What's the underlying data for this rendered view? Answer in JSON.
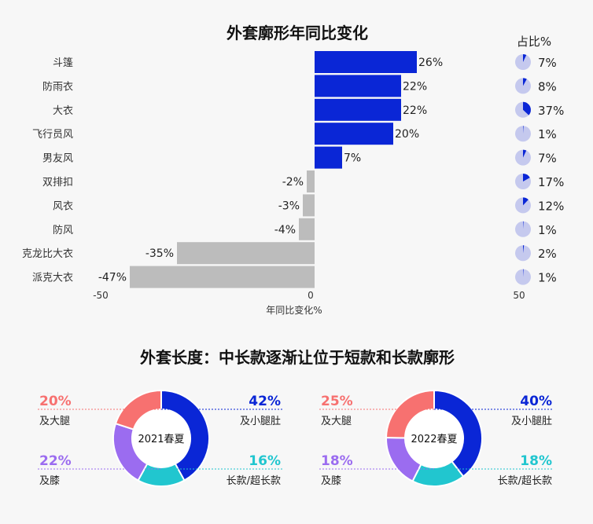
{
  "chart_data": [
    {
      "type": "bar",
      "orientation": "horizontal",
      "title": "外套廓形年同比变化",
      "xlabel": "年同比变化%",
      "xlim": [
        -50,
        50
      ],
      "xticks": [
        "-50",
        "0",
        "50"
      ],
      "categories": [
        "斗篷",
        "防雨衣",
        "大衣",
        "飞行员风",
        "男友风",
        "双排扣",
        "风衣",
        "防风",
        "克龙比大衣",
        "派克大衣"
      ],
      "values": [
        26,
        22,
        22,
        20,
        7,
        -2,
        -3,
        -4,
        -35,
        -47
      ],
      "value_labels": [
        "26%",
        "22%",
        "22%",
        "20%",
        "7%",
        "-2%",
        "-3%",
        "-4%",
        "-35%",
        "-47%"
      ],
      "share_title": "占比%",
      "share": [
        7,
        8,
        37,
        1,
        7,
        17,
        12,
        1,
        2,
        1
      ],
      "share_labels": [
        "7%",
        "8%",
        "37%",
        "1%",
        "7%",
        "17%",
        "12%",
        "1%",
        "2%",
        "1%"
      ],
      "colors": {
        "positive": "#0a26d6",
        "negative": "#bcbcbc",
        "pie_bg": "#c5c9ee",
        "pie_fg": "#0a26d6"
      }
    },
    {
      "type": "pie",
      "donut": true,
      "title": "外套长度：中长款逐渐让位于短款和长款廓形",
      "label": "2021春夏",
      "slices": [
        {
          "name": "及小腿肚",
          "value": 42,
          "label": "42%",
          "color": "#0a26d6"
        },
        {
          "name": "长款/超长款",
          "value": 16,
          "label": "16%",
          "color": "#21c6cf"
        },
        {
          "name": "及膝",
          "value": 22,
          "label": "22%",
          "color": "#9b6cf0"
        },
        {
          "name": "及大腿",
          "value": 20,
          "label": "20%",
          "color": "#f77170"
        }
      ]
    },
    {
      "type": "pie",
      "donut": true,
      "label": "2022春夏",
      "slices": [
        {
          "name": "及小腿肚",
          "value": 40,
          "label": "40%",
          "color": "#0a26d6"
        },
        {
          "name": "长款/超长款",
          "value": 18,
          "label": "18%",
          "color": "#21c6cf"
        },
        {
          "name": "及膝",
          "value": 18,
          "label": "18%",
          "color": "#9b6cf0"
        },
        {
          "name": "及大腿",
          "value": 25,
          "label": "25%",
          "color": "#f77170"
        }
      ]
    }
  ]
}
